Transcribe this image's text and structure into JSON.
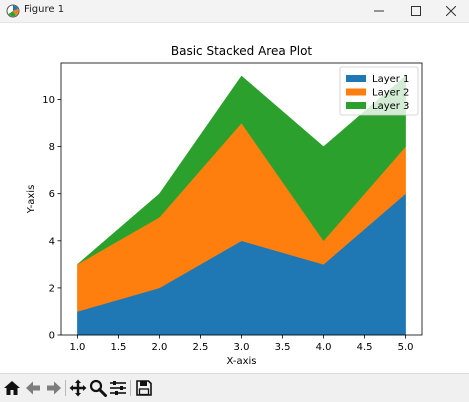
{
  "window": {
    "title": "Figure 1",
    "icons": [
      "matplotlib-icon",
      "minimize-icon",
      "maximize-icon",
      "close-icon"
    ]
  },
  "toolbar": {
    "buttons": [
      {
        "name": "home-icon",
        "tooltip": "Home"
      },
      {
        "name": "back-icon",
        "tooltip": "Back"
      },
      {
        "name": "forward-icon",
        "tooltip": "Forward"
      },
      {
        "name": "pan-icon",
        "tooltip": "Pan"
      },
      {
        "name": "zoom-icon",
        "tooltip": "Zoom"
      },
      {
        "name": "configure-subplots-icon",
        "tooltip": "Subplots"
      },
      {
        "name": "save-icon",
        "tooltip": "Save"
      }
    ]
  },
  "chart_data": {
    "type": "area",
    "stacked": true,
    "title": "Basic Stacked Area Plot",
    "xlabel": "X-axis",
    "ylabel": "Y-axis",
    "x": [
      1,
      2,
      3,
      4,
      5
    ],
    "series": [
      {
        "name": "Layer 1",
        "values": [
          1,
          2,
          4,
          3,
          6
        ],
        "color": "#1f77b4"
      },
      {
        "name": "Layer 2",
        "values": [
          2,
          3,
          5,
          1,
          2
        ],
        "color": "#ff7f0e"
      },
      {
        "name": "Layer 3",
        "values": [
          0,
          1,
          2,
          4,
          3
        ],
        "color": "#2ca02c"
      }
    ],
    "xlim": [
      0.8,
      5.2
    ],
    "ylim": [
      0,
      11.55
    ],
    "xticks": [
      "1.0",
      "1.5",
      "2.0",
      "2.5",
      "3.0",
      "3.5",
      "4.0",
      "4.5",
      "5.0"
    ],
    "yticks": [
      "0",
      "2",
      "4",
      "6",
      "8",
      "10"
    ],
    "grid": false,
    "legend_position": "top-right"
  }
}
